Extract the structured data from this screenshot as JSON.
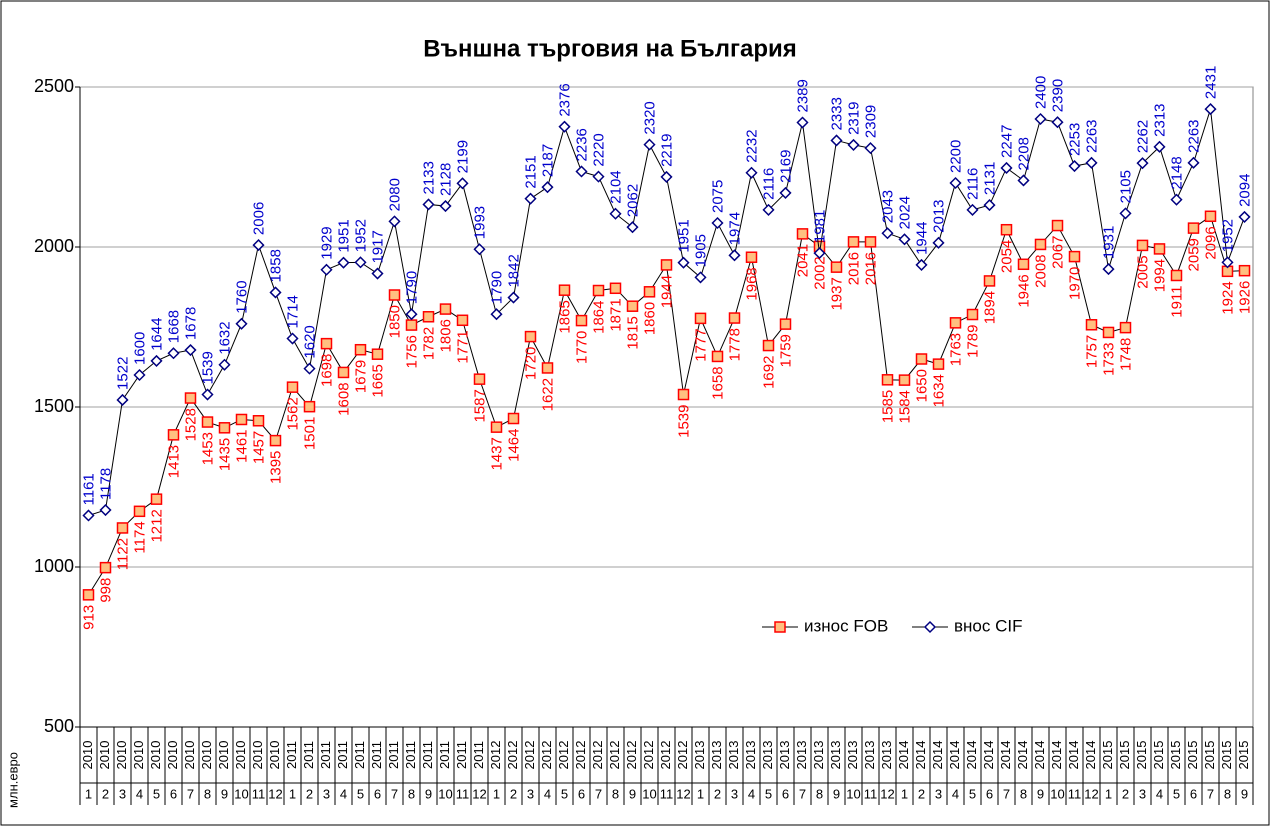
{
  "chart_data": {
    "type": "line",
    "title": "Външна търговия на България",
    "y_label": "млн.евро",
    "category_years": [
      "2010",
      "2010",
      "2010",
      "2010",
      "2010",
      "2010",
      "2010",
      "2010",
      "2010",
      "2010",
      "2010",
      "2010",
      "2011",
      "2011",
      "2011",
      "2011",
      "2011",
      "2011",
      "2011",
      "2011",
      "2011",
      "2011",
      "2011",
      "2011",
      "2012",
      "2012",
      "2012",
      "2012",
      "2012",
      "2012",
      "2012",
      "2012",
      "2012",
      "2012",
      "2012",
      "2012",
      "2013",
      "2013",
      "2013",
      "2013",
      "2013",
      "2013",
      "2013",
      "2013",
      "2013",
      "2013",
      "2013",
      "2013",
      "2014",
      "2014",
      "2014",
      "2014",
      "2014",
      "2014",
      "2014",
      "2014",
      "2014",
      "2014",
      "2014",
      "2014",
      "2015",
      "2015",
      "2015",
      "2015",
      "2015",
      "2015",
      "2015",
      "2015",
      "2015"
    ],
    "categories": [
      "1",
      "2",
      "3",
      "4",
      "5",
      "6",
      "7",
      "8",
      "9",
      "10",
      "11",
      "12",
      "1",
      "2",
      "3",
      "4",
      "5",
      "6",
      "7",
      "8",
      "9",
      "10",
      "11",
      "12",
      "1",
      "2",
      "3",
      "4",
      "5",
      "6",
      "7",
      "8",
      "9",
      "10",
      "11",
      "12",
      "1",
      "2",
      "3",
      "4",
      "5",
      "6",
      "7",
      "8",
      "9",
      "10",
      "11",
      "12",
      "1",
      "2",
      "3",
      "4",
      "5",
      "6",
      "7",
      "8",
      "9",
      "10",
      "11",
      "12",
      "1",
      "2",
      "3",
      "4",
      "5",
      "6",
      "7",
      "8",
      "9"
    ],
    "series": [
      {
        "name": "износ FOB",
        "color": "#ff0000",
        "marker": "square",
        "marker_fill": "#ffc080",
        "values": [
          913,
          998,
          1122,
          1174,
          1212,
          1413,
          1528,
          1453,
          1435,
          1461,
          1457,
          1395,
          1562,
          1501,
          1698,
          1608,
          1679,
          1665,
          1850,
          1756,
          1782,
          1806,
          1771,
          1587,
          1437,
          1464,
          1720,
          1622,
          1865,
          1770,
          1864,
          1871,
          1815,
          1860,
          1944,
          1539,
          1777,
          1658,
          1778,
          1968,
          1692,
          1759,
          2041,
          2002,
          1937,
          2016,
          2016,
          1585,
          1584,
          1650,
          1634,
          1763,
          1789,
          1894,
          2054,
          1946,
          2008,
          2067,
          1970,
          1757,
          1733,
          1748,
          2005,
          1994,
          1911,
          2059,
          2096,
          1924,
          1926
        ]
      },
      {
        "name": "внос CIF",
        "color": "#0000cc",
        "marker": "diamond",
        "marker_fill": "#ffffff",
        "values": [
          1161,
          1178,
          1522,
          1600,
          1644,
          1668,
          1678,
          1539,
          1632,
          1760,
          2006,
          1858,
          1714,
          1620,
          1929,
          1951,
          1952,
          1917,
          2080,
          1790,
          2133,
          2128,
          2199,
          1993,
          1790,
          1842,
          2151,
          2187,
          2376,
          2236,
          2220,
          2104,
          2062,
          2320,
          2219,
          1951,
          1905,
          2075,
          1974,
          2232,
          2116,
          2169,
          2389,
          1981,
          2333,
          2319,
          2309,
          2043,
          2024,
          1944,
          2013,
          2200,
          2116,
          2131,
          2247,
          2208,
          2400,
          2390,
          2253,
          2263,
          1931,
          2105,
          2262,
          2313,
          2148,
          2263,
          2431,
          1952,
          2094
        ]
      }
    ],
    "ylim": [
      500,
      2500
    ],
    "yticks": [
      500,
      1000,
      1500,
      2000,
      2500
    ],
    "grid": true
  }
}
